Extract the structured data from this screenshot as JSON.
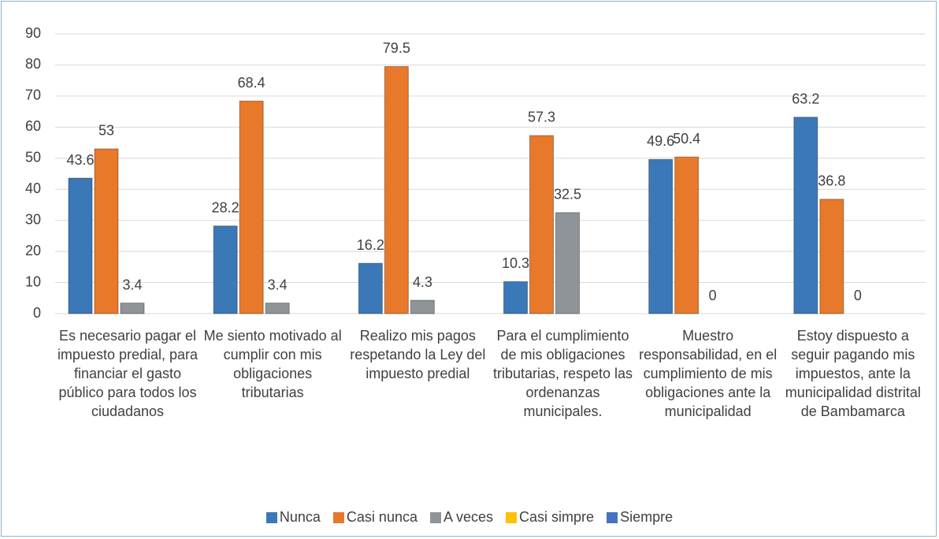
{
  "chart_data": {
    "type": "bar",
    "categories": [
      "Es necesario pagar el impuesto predial, para financiar el gasto público para todos los ciudadanos",
      "Me siento motivado al cumplir con mis obligaciones tributarias",
      "Realizo mis pagos respetando la Ley del impuesto predial",
      "Para el cumplimiento de mis obligaciones tributarias, respeto las ordenanzas municipales.",
      "Muestro responsabilidad, en el cumplimiento de mis obligaciones ante la municipalidad",
      "Estoy dispuesto a seguir pagando mis impuestos, ante la municipalidad distrital de Bambamarca"
    ],
    "series": [
      {
        "name": "Nunca",
        "color": "#3b78b8",
        "values": [
          43.6,
          28.2,
          16.2,
          10.3,
          49.6,
          63.2
        ]
      },
      {
        "name": "Casi nunca",
        "color": "#e8782a",
        "values": [
          53,
          68.4,
          79.5,
          57.3,
          50.4,
          36.8
        ]
      },
      {
        "name": "A veces",
        "color": "#8f9499",
        "values": [
          3.4,
          3.4,
          4.3,
          32.5,
          0,
          0
        ]
      },
      {
        "name": "Casi simpre",
        "color": "#ffc000",
        "values": [
          null,
          null,
          null,
          null,
          null,
          null
        ]
      },
      {
        "name": "Siempre",
        "color": "#4472c4",
        "values": [
          null,
          null,
          null,
          null,
          null,
          null
        ]
      }
    ],
    "ylim": [
      0,
      90
    ],
    "yticks": [
      0,
      10,
      20,
      30,
      40,
      50,
      60,
      70,
      80,
      90
    ],
    "grid": true,
    "legend": "bottom"
  }
}
